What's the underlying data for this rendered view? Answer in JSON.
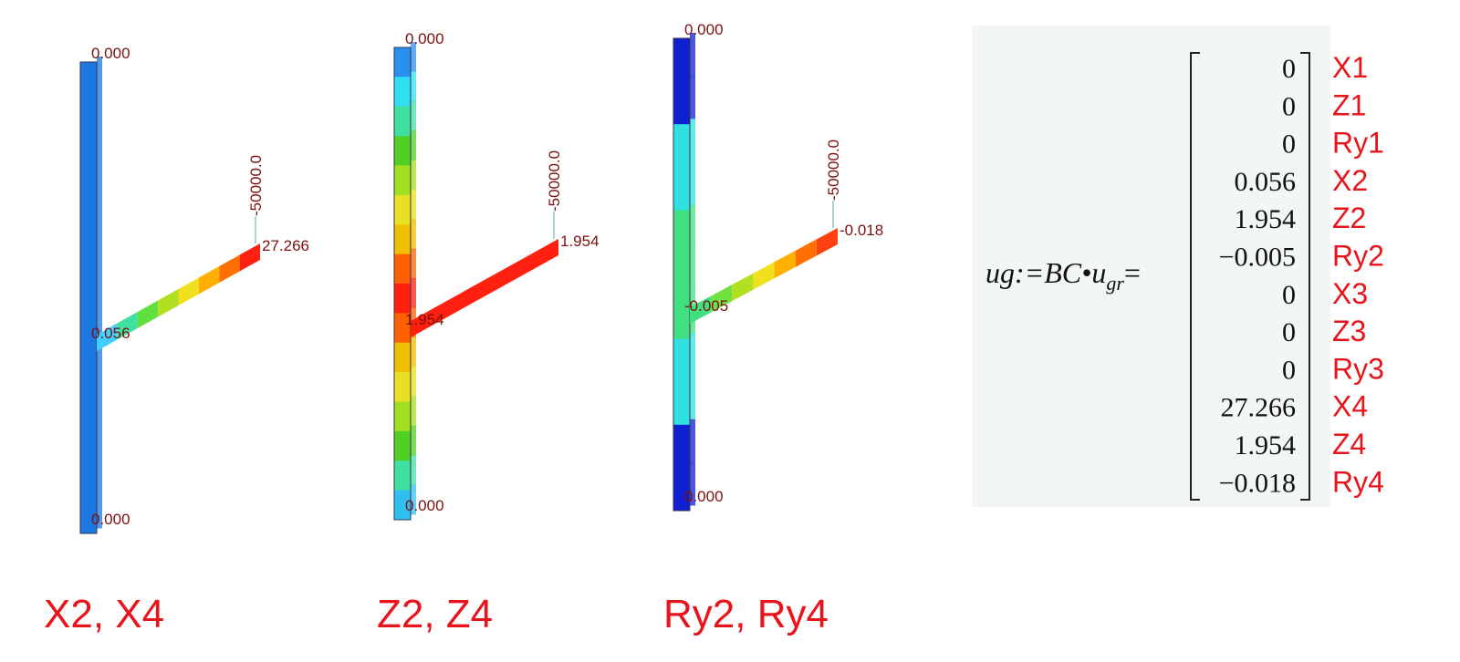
{
  "panels": [
    {
      "caption": "X2, X4",
      "top_label": "0.000",
      "load_label": "-50000.0",
      "tip_label": "27.266",
      "joint_label": "0.056",
      "bottom_label": "0.000"
    },
    {
      "caption": "Z2, Z4",
      "top_label": "0.000",
      "load_label": "-50000.0",
      "tip_label": "1.954",
      "joint_label": "1.954",
      "bottom_label": "0.000"
    },
    {
      "caption": "Ry2, Ry4",
      "top_label": "0.000",
      "load_label": "-50000.0",
      "tip_label": "-0.018",
      "joint_label": "-0.005",
      "bottom_label": "0.000"
    }
  ],
  "equation": {
    "lhs": "ug:=BC•u",
    "subscript": "gr",
    "equals": "=",
    "entries": [
      "0",
      "0",
      "0",
      "0.056",
      "1.954",
      "−0.005",
      "0",
      "0",
      "0",
      "27.266",
      "1.954",
      "−0.018"
    ],
    "row_labels": [
      "X1",
      "Z1",
      "Ry1",
      "X2",
      "Z2",
      "Ry2",
      "X3",
      "Z3",
      "Ry3",
      "X4",
      "Z4",
      "Ry4"
    ]
  }
}
